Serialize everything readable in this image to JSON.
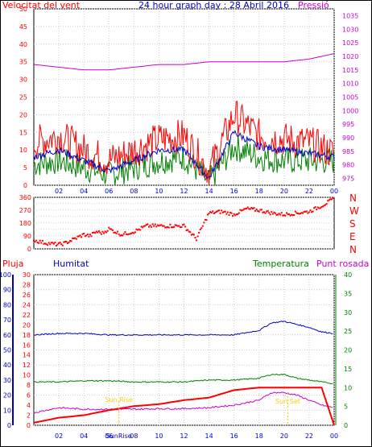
{
  "header": {
    "wind_label": "Velocitat del vent",
    "title": "24 hour graph day : 28 Abril 2016",
    "pressure_label": "Pressió"
  },
  "colors": {
    "wind_gust": "#ff0000",
    "wind_avg_max": "#0000cc",
    "wind_avg": "#008000",
    "pressure": "#cc00cc",
    "direction": "#ff0000",
    "humidity": "#0000cc",
    "temperature": "#008000",
    "dewpoint": "#cc00cc",
    "rain": "#ff0000",
    "sun": "#ffcc00",
    "axis": "#000000"
  },
  "direction_labels": [
    "N",
    "W",
    "S",
    "E",
    "N"
  ],
  "legend2": {
    "rain": "Pluja",
    "humidity": "Humitat",
    "temperature": "Temperatura",
    "dewpoint": "Punt rosada"
  },
  "sun_labels": {
    "sunrise_text": "Sun Rise",
    "sunset_text": "Sun Set",
    "sunrise_tick": "SunRise"
  },
  "chart_data": [
    {
      "type": "line",
      "name": "wind_pressure",
      "title": "24 hour graph day : 28 Abril 2016",
      "x_ticks": [
        "02",
        "04",
        "06",
        "08",
        "10",
        "12",
        "14",
        "16",
        "18",
        "20",
        "22",
        "00"
      ],
      "y_left_ticks": [
        0,
        5,
        10,
        15,
        20,
        25,
        30,
        35,
        40,
        45,
        50
      ],
      "y_right_ticks": [
        975,
        980,
        985,
        990,
        995,
        1000,
        1005,
        1010,
        1015,
        1020,
        1025,
        1030,
        1035
      ],
      "ylim_left": [
        0,
        50
      ],
      "ylim_right": [
        972.5,
        1037.5
      ],
      "pressure_x": [
        0,
        2,
        4,
        6,
        8,
        10,
        12,
        14,
        16,
        18,
        20,
        22,
        24
      ],
      "pressure": [
        1017,
        1016,
        1015,
        1015,
        1016,
        1017,
        1017,
        1018,
        1018,
        1018,
        1018,
        1019,
        1021
      ],
      "wind_gust_x": [
        0,
        2,
        4,
        6,
        8,
        10,
        12,
        14,
        16,
        18,
        20,
        22,
        24
      ],
      "wind_gust": [
        12,
        14,
        10,
        7,
        10,
        13,
        14,
        4,
        20,
        14,
        13,
        12,
        9
      ],
      "wind_avg_max": [
        8,
        10,
        7,
        4,
        7,
        10,
        10,
        2,
        15,
        11,
        10,
        9,
        8
      ],
      "wind_avg": [
        6,
        7,
        5,
        3,
        5,
        7,
        8,
        1,
        11,
        8,
        7,
        7,
        7
      ]
    },
    {
      "type": "scatter",
      "name": "wind_direction",
      "x_ticks": [
        "02",
        "04",
        "06",
        "08",
        "10",
        "12",
        "14",
        "16",
        "18",
        "20",
        "22",
        "00"
      ],
      "y_ticks": [
        0,
        45,
        90,
        135,
        180,
        225,
        270,
        315,
        360
      ],
      "ylim": [
        0,
        360
      ],
      "x": [
        0,
        0.5,
        1,
        1.5,
        2,
        2.5,
        3,
        3.5,
        4,
        4.5,
        5,
        5.5,
        6,
        7,
        8,
        9,
        10,
        11,
        12,
        13,
        14,
        15,
        16,
        17,
        18,
        19,
        20,
        21,
        22,
        23,
        24
      ],
      "y": [
        60,
        50,
        40,
        35,
        30,
        40,
        60,
        80,
        100,
        90,
        120,
        110,
        140,
        100,
        120,
        160,
        160,
        160,
        160,
        70,
        250,
        260,
        240,
        280,
        270,
        250,
        240,
        250,
        260,
        300,
        350
      ]
    },
    {
      "type": "line",
      "name": "rain_humidity_temperature",
      "x_ticks": [
        "02",
        "04",
        "06",
        "SunRise",
        "08",
        "10",
        "12",
        "14",
        "16",
        "18",
        "20",
        "22",
        "00"
      ],
      "y_left_ticks": [
        0,
        10,
        20,
        30,
        40,
        50,
        60,
        70,
        80,
        90,
        100
      ],
      "y_mid_ticks": [
        0,
        2,
        4,
        6,
        8,
        10,
        12,
        14,
        16,
        18,
        20,
        22,
        24,
        26,
        28,
        30
      ],
      "y_right_ticks": [
        0,
        5,
        10,
        15,
        20,
        25,
        30,
        35,
        40
      ],
      "ylim_humidity": [
        0,
        100
      ],
      "ylim_rain": [
        0,
        30
      ],
      "ylim_temp": [
        0,
        40
      ],
      "x": [
        0,
        2,
        4,
        6,
        8,
        10,
        12,
        14,
        16,
        18,
        19,
        20,
        21,
        22,
        23,
        24
      ],
      "humidity": [
        60,
        61,
        61,
        60,
        60,
        60,
        60,
        60,
        60,
        63,
        68,
        69,
        67,
        65,
        62,
        61
      ],
      "temperature": [
        11.5,
        11.5,
        11.8,
        11.8,
        11.5,
        11.5,
        11.5,
        12,
        12,
        12.5,
        13.5,
        13.5,
        12.5,
        12,
        11.5,
        11
      ],
      "rain": [
        0.5,
        1.5,
        2,
        3,
        3.8,
        4.2,
        5,
        5.5,
        7,
        7.5,
        7.5,
        7.5,
        7.5,
        7.5,
        7.5,
        0
      ],
      "dewpoint": [
        2.5,
        3.5,
        3.2,
        3.2,
        3.2,
        3.3,
        3.3,
        3.5,
        4,
        5,
        6.5,
        6.5,
        6,
        5,
        4,
        3.5
      ],
      "sunrise_x": 6.8,
      "sunset_x": 20.3
    }
  ]
}
